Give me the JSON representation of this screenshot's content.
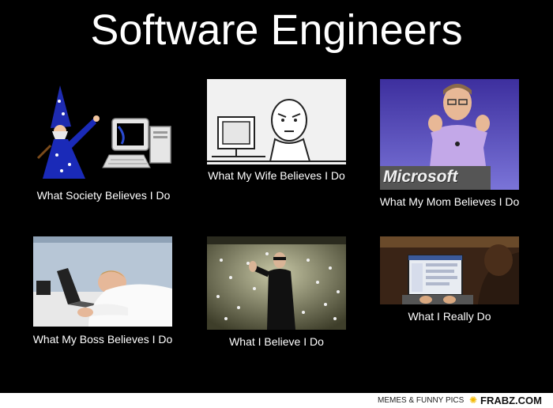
{
  "meme": {
    "title": "Software Engineers",
    "panels": [
      {
        "caption": "What Society Believes I Do",
        "illustration": "wizard-with-computer"
      },
      {
        "caption": "What My Wife Believes I Do",
        "illustration": "rage-comic-at-computer"
      },
      {
        "caption": "What My Mom Believes I Do",
        "illustration": "presenter-on-stage",
        "stage_sign": "Microsoft"
      },
      {
        "caption": "What My Boss Believes I Do",
        "illustration": "man-asleep-on-keyboard"
      },
      {
        "caption": "What I Believe I Do",
        "illustration": "man-stopping-bullets"
      },
      {
        "caption": "What I Really Do",
        "illustration": "person-browsing-social-media"
      }
    ]
  },
  "footer": {
    "tagline": "MEMES & FUNNY PICS",
    "site": "FRABZ.COM",
    "star_icon": "sun-star-icon"
  }
}
